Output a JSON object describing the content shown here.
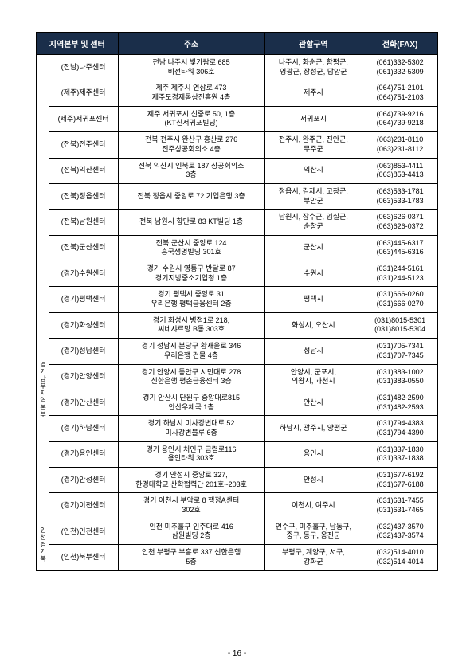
{
  "headers": {
    "col1": "지역본부 및 센터",
    "col2": "주소",
    "col3": "관할구역",
    "col4": "전화(FAX)"
  },
  "groups": [
    {
      "region": "",
      "rows": [
        {
          "center": "(전남)나주센터",
          "addr": "전남 나주시 빛가람로 685\n비전타워 306호",
          "area": "나주시, 화순군, 함평군,\n영광군, 장성군, 담양군",
          "phone": "(061)332-5302\n(061)332-5309"
        },
        {
          "center": "(제주)제주센터",
          "addr": "제주 제주시 연삼로 473\n제주도경제통상진흥원 4층",
          "area": "제주시",
          "phone": "(064)751-2101\n(064)751-2103"
        },
        {
          "center": "(제주)서귀포센터",
          "addr": "제주 서귀포시 신중로 50, 1층\n(KT신서귀포빌딩)",
          "area": "서귀포시",
          "phone": "(064)739-9216\n(064)739-9218"
        },
        {
          "center": "(전북)전주센터",
          "addr": "전북 전주시 완산구 홍산로 276\n전주상공회의소 4층",
          "area": "전주시, 완주군, 진안군,\n무주군",
          "phone": "(063)231-8110\n(063)231-8112"
        },
        {
          "center": "(전북)익산센터",
          "addr": "전북 익산시 인북로 187 상공회의소\n3층",
          "area": "익산시",
          "phone": "(063)853-4411\n(063)853-4413"
        },
        {
          "center": "(전북)정읍센터",
          "addr": "전북 정읍시 중앙로 72 기업은행 3층",
          "area": "정읍시, 김제시, 고창군,\n부안군",
          "phone": "(063)533-1781\n(063)533-1783"
        },
        {
          "center": "(전북)남원센터",
          "addr": "전북 남원시 향단로 83 KT빌딩 1층",
          "area": "남원시, 장수군, 임실군,\n순창군",
          "phone": "(063)626-0371\n(063)626-0372"
        },
        {
          "center": "(전북)군산센터",
          "addr": "전북 군산시 중앙로 124\n흥국생명빌딩 301호",
          "area": "군산시",
          "phone": "(063)445-6317\n(063)445-6316"
        }
      ]
    },
    {
      "region": "경기남부지역본부",
      "rows": [
        {
          "center": "(경기)수원센터",
          "addr": "경기 수원시 영통구 반달로 87\n경기지방중소기업청 1층",
          "area": "수원시",
          "phone": "(031)244-5161\n(031)244-5123"
        },
        {
          "center": "(경기)평택센터",
          "addr": "경기 평택시 중앙로 31\n우리은행 평택금융센터 2층",
          "area": "평택시",
          "phone": "(031)666-0260\n(031)666-0270"
        },
        {
          "center": "(경기)화성센터",
          "addr": "경기 화성시 병점1로 218,\n씨네샤르망 B동 303호",
          "area": "화성시, 오산시",
          "phone": "(031)8015-5301\n(031)8015-5304"
        },
        {
          "center": "(경기)성남센터",
          "addr": "경기 성남시 분당구 황새울로 346\n우리은행 건물 4층",
          "area": "성남시",
          "phone": "(031)705-7341\n(031)707-7345"
        },
        {
          "center": "(경기)안양센터",
          "addr": "경기 안양시 동안구 시민대로 278\n신한은행 평촌금융센터 3층",
          "area": "안양시, 군포시,\n의왕시, 과천시",
          "phone": "(031)383-1002\n(031)383-0550"
        },
        {
          "center": "(경기)안산센터",
          "addr": "경기 안산시 단원구 중앙대로815\n안산우체국 1층",
          "area": "안산시",
          "phone": "(031)482-2590\n(031)482-2593"
        },
        {
          "center": "(경기)하남센터",
          "addr": "경기 하남시 미사강변대로 52\n미사강변블루 6층",
          "area": "하남시, 광주시, 양평군",
          "phone": "(031)794-4383\n(031)794-4390"
        },
        {
          "center": "(경기)용인센터",
          "addr": "경기 용인시 처인구 금령로116\n용인타워 303호",
          "area": "용인시",
          "phone": "(031)337-1830\n(031)337-1838"
        },
        {
          "center": "(경기)안성센터",
          "addr": "경기 안성시 중앙로 327,\n한경대학교 산학협력단 201호~203호",
          "area": "안성시",
          "phone": "(031)677-6192\n(031)677-6188"
        },
        {
          "center": "(경기)이천센터",
          "addr": "경기 이천시 부악로 8 행정A센터\n302호",
          "area": "이천시, 여주시",
          "phone": "(031)631-7455\n(031)631-7465"
        }
      ]
    },
    {
      "region": "인천경기북",
      "rows": [
        {
          "center": "(인천)인천센터",
          "addr": "인천 미추홀구 인주대로 416\n삼원빌딩 2층",
          "area": "연수구, 미추홀구, 남동구,\n중구, 동구, 옹진군",
          "phone": "(032)437-3570\n(032)437-3574"
        },
        {
          "center": "(인천)북부센터",
          "addr": "인천 부평구 부흥로 337 신한은행\n5층",
          "area": "부평구, 계양구, 서구,\n강화군",
          "phone": "(032)514-4010\n(032)514-4014"
        }
      ]
    }
  ],
  "pageNumber": "- 16 -"
}
